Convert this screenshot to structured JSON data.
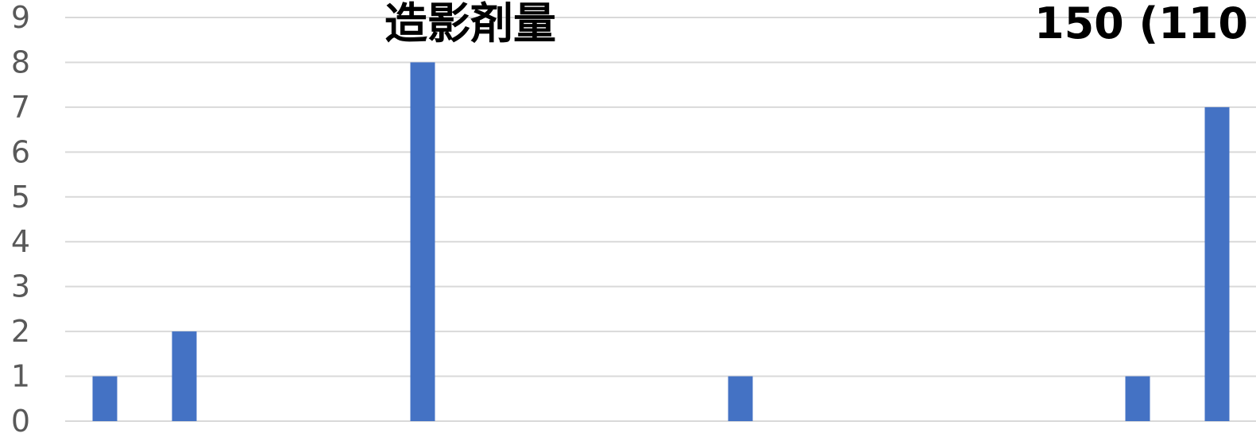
{
  "chart_data": {
    "type": "bar",
    "title": "造影剤量",
    "title_right": "150 (110",
    "categories": [
      "",
      "",
      "",
      "",
      "",
      "",
      "",
      "",
      "",
      "",
      "",
      "",
      "",
      "",
      ""
    ],
    "values": [
      1,
      2,
      0,
      0,
      8,
      0,
      0,
      0,
      1,
      0,
      0,
      0,
      0,
      1,
      7
    ],
    "ylim": [
      0,
      9
    ],
    "yticks": [
      "0",
      "1",
      "2",
      "3",
      "4",
      "5",
      "6",
      "7",
      "8",
      "9"
    ],
    "grid": true,
    "colors": {
      "bar": "#4472c4",
      "grid": "#d9d9d9",
      "tick": "#595959"
    }
  }
}
